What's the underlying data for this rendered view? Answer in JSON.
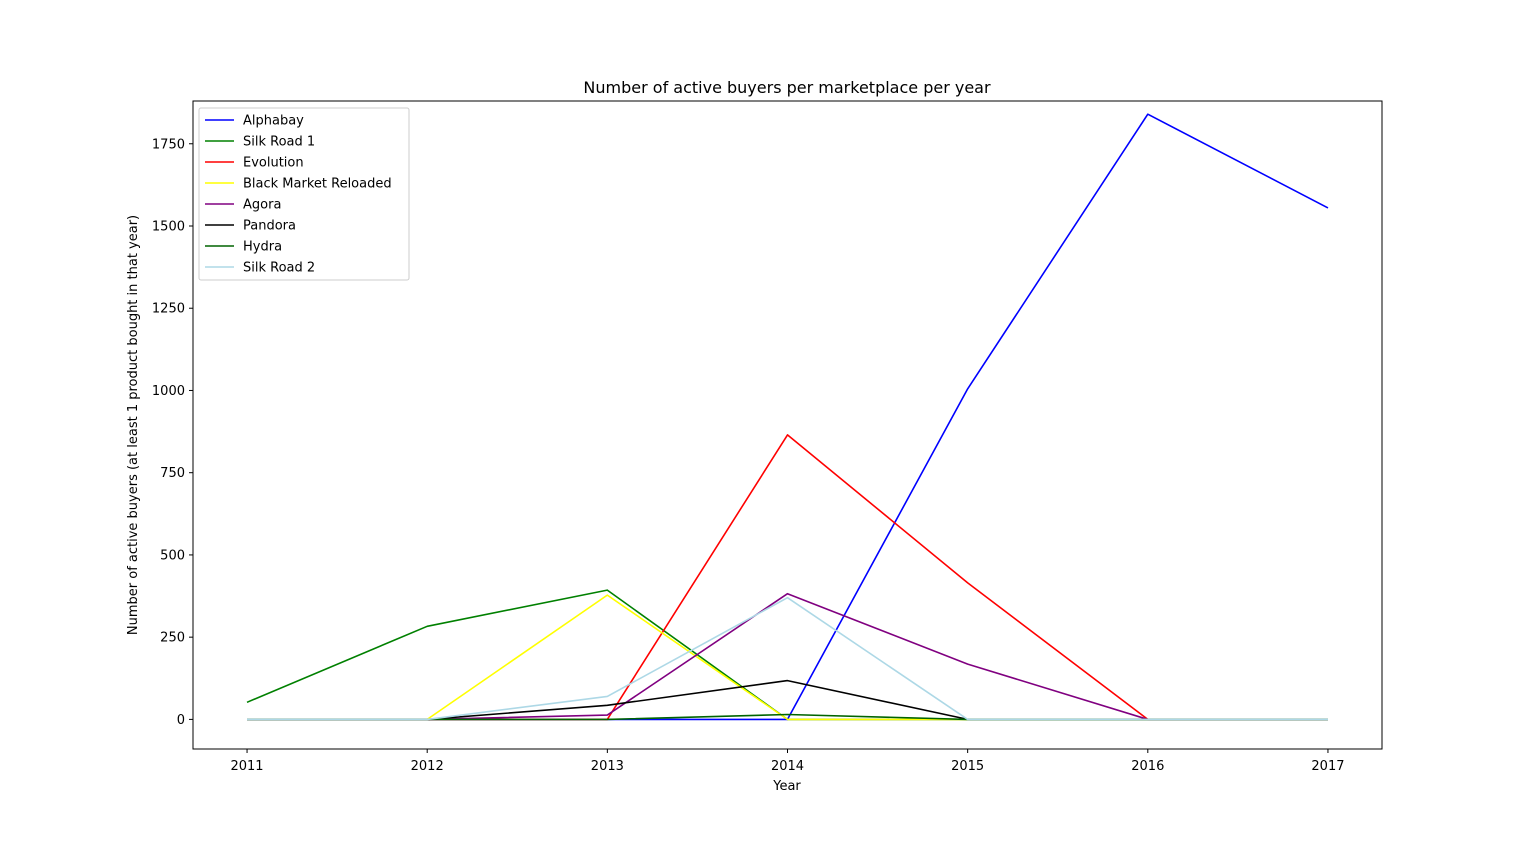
{
  "chart_data": {
    "type": "line",
    "title": "Number of active buyers per marketplace per year",
    "xlabel": "Year",
    "ylabel": "Number of active buyers (at least 1 product bought in that year)",
    "x": [
      2011,
      2012,
      2013,
      2014,
      2015,
      2016,
      2017
    ],
    "x_tick_labels": [
      "2011",
      "2012",
      "2013",
      "2014",
      "2015",
      "2016",
      "2017"
    ],
    "y_ticks": [
      0,
      250,
      500,
      750,
      1000,
      1250,
      1500,
      1750
    ],
    "y_tick_labels": [
      "0",
      "250",
      "500",
      "750",
      "1000",
      "1250",
      "1500",
      "1750"
    ],
    "xlim": [
      2010.7,
      2017.3
    ],
    "ylim": [
      -90,
      1880
    ],
    "grid": false,
    "legend_position": "top-left",
    "series": [
      {
        "name": "Alphabay",
        "color": "#0000ff",
        "values": [
          0,
          0,
          0,
          0,
          1005,
          1840,
          1555
        ]
      },
      {
        "name": "Silk Road 1",
        "color": "#008000",
        "values": [
          52,
          283,
          393,
          0,
          0,
          0,
          0
        ]
      },
      {
        "name": "Evolution",
        "color": "#ff0000",
        "values": [
          0,
          0,
          0,
          865,
          415,
          0,
          0
        ]
      },
      {
        "name": "Black Market Reloaded",
        "color": "#ffff00",
        "values": [
          0,
          0,
          378,
          0,
          0,
          0,
          0
        ]
      },
      {
        "name": "Agora",
        "color": "#800080",
        "values": [
          0,
          0,
          13,
          382,
          168,
          0,
          0
        ]
      },
      {
        "name": "Pandora",
        "color": "#000000",
        "values": [
          0,
          0,
          43,
          118,
          0,
          0,
          0
        ]
      },
      {
        "name": "Hydra",
        "color": "#006400",
        "values": [
          0,
          0,
          0,
          15,
          0,
          0,
          0
        ]
      },
      {
        "name": "Silk Road 2",
        "color": "#add8e6",
        "values": [
          0,
          0,
          70,
          370,
          0,
          0,
          0
        ]
      }
    ]
  }
}
